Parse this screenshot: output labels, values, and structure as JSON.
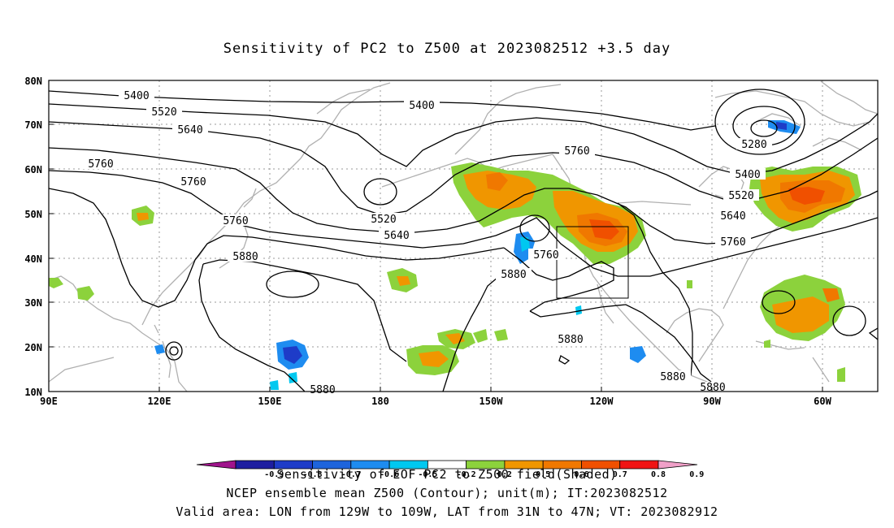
{
  "title": "Sensitivity of PC2 to Z500 at 2023082512 +3.5 day",
  "axes": {
    "lat_labels": [
      "80N",
      "70N",
      "60N",
      "50N",
      "40N",
      "30N",
      "20N",
      "10N"
    ],
    "lon_labels": [
      "90E",
      "120E",
      "150E",
      "180",
      "150W",
      "120W",
      "90W",
      "60W"
    ]
  },
  "contours": {
    "labels": [
      "5400",
      "5520",
      "5640",
      "5760",
      "5760",
      "5760",
      "5400",
      "5760",
      "5520",
      "5640",
      "5880",
      "5760",
      "5880",
      "5880",
      "5880",
      "5880",
      "5880",
      "5280",
      "5400",
      "5520",
      "5640",
      "5760"
    ]
  },
  "colorbar": {
    "values": [
      "-0.9",
      "-0.8",
      "-0.7",
      "-0.6",
      "-0.5",
      "-0.2",
      "0.2",
      "0.5",
      "0.6",
      "0.7",
      "0.8",
      "0.9"
    ],
    "colors": [
      "#a0148c",
      "#1e1ea0",
      "#1e3cc8",
      "#1e64dc",
      "#1e8cf0",
      "#00c8f0",
      "#ffffff",
      "#8cd23c",
      "#f09600",
      "#f07800",
      "#f05000",
      "#f01414",
      "#f0a0c8"
    ]
  },
  "captions": {
    "line1": "Sensitivity of EOF PC2 to Z500 field(Shaded)",
    "line2": "NCEP ensemble mean Z500 (Contour); unit(m); IT:2023082512",
    "line3": "Valid area: LON from 129W to 109W, LAT from 31N to 47N; VT: 2023082912"
  },
  "valid_area": {
    "lon_from": "129W",
    "lon_to": "109W",
    "lat_from": "31N",
    "lat_to": "47N"
  }
}
